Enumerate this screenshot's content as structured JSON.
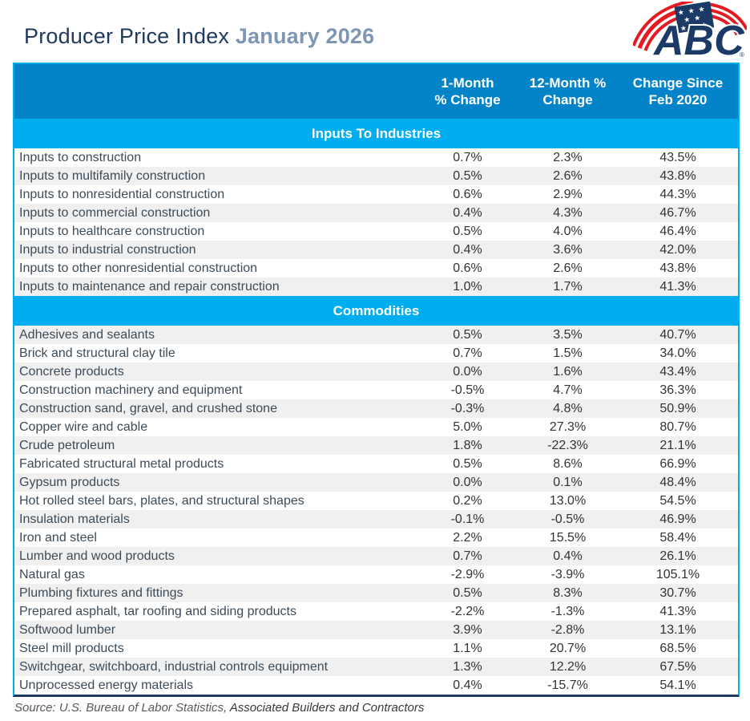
{
  "page": {
    "title_main": "Producer Price Index ",
    "title_period": "January 2026"
  },
  "logo": {
    "text": "ABC",
    "registered": "®",
    "navy": "#1b3a66",
    "red": "#e31b23"
  },
  "colors": {
    "header_blue": "#0484c8",
    "section_blue": "#00aeef",
    "title_navy": "#20395f",
    "title_period_blue": "#7e96b4",
    "row_shade": "#f0f0f0",
    "label_text": "#3d4b57"
  },
  "table": {
    "columns": [
      {
        "text": "1-Month\n% Change"
      },
      {
        "text": "12-Month %\nChange"
      },
      {
        "text": "Change Since\nFeb 2020"
      }
    ],
    "sections": [
      {
        "label": "Inputs To Industries",
        "zebra_first": "white",
        "rows": [
          [
            "Inputs to construction",
            "0.7%",
            "2.3%",
            "43.5%"
          ],
          [
            "Inputs to multifamily construction",
            "0.5%",
            "2.6%",
            "43.8%"
          ],
          [
            "Inputs to nonresidential construction",
            "0.6%",
            "2.9%",
            "44.3%"
          ],
          [
            "Inputs to commercial construction",
            "0.4%",
            "4.3%",
            "46.7%"
          ],
          [
            "Inputs to healthcare construction",
            "0.5%",
            "4.0%",
            "46.4%"
          ],
          [
            "Inputs to industrial construction",
            "0.4%",
            "3.6%",
            "42.0%"
          ],
          [
            "Inputs to other nonresidential construction",
            "0.6%",
            "2.6%",
            "43.8%"
          ],
          [
            "Inputs to maintenance and repair construction",
            "1.0%",
            "1.7%",
            "41.3%"
          ]
        ]
      },
      {
        "label": "Commodities",
        "zebra_first": "shade",
        "rows": [
          [
            "Adhesives and sealants",
            "0.5%",
            "3.5%",
            "40.7%"
          ],
          [
            "Brick and structural clay tile",
            "0.7%",
            "1.5%",
            "34.0%"
          ],
          [
            "Concrete products",
            "0.0%",
            "1.6%",
            "43.4%"
          ],
          [
            "Construction machinery and equipment",
            "-0.5%",
            "4.7%",
            "36.3%"
          ],
          [
            "Construction sand, gravel, and crushed stone",
            "-0.3%",
            "4.8%",
            "50.9%"
          ],
          [
            "Copper wire and cable",
            "5.0%",
            "27.3%",
            "80.7%"
          ],
          [
            "Crude petroleum",
            "1.8%",
            "-22.3%",
            "21.1%"
          ],
          [
            "Fabricated structural metal products",
            "0.5%",
            "8.6%",
            "66.9%"
          ],
          [
            "Gypsum products",
            "0.0%",
            "0.1%",
            "48.4%"
          ],
          [
            "Hot rolled steel bars, plates, and structural shapes",
            "0.2%",
            "13.0%",
            "54.5%"
          ],
          [
            "Insulation materials",
            "-0.1%",
            "-0.5%",
            "46.9%"
          ],
          [
            "Iron and steel",
            "2.2%",
            "15.5%",
            "58.4%"
          ],
          [
            "Lumber and wood products",
            "0.7%",
            "0.4%",
            "26.1%"
          ],
          [
            "Natural gas",
            "-2.9%",
            "-3.9%",
            "105.1%"
          ],
          [
            "Plumbing fixtures and fittings",
            "0.5%",
            "8.3%",
            "30.7%"
          ],
          [
            "Prepared asphalt, tar roofing and siding products",
            "-2.2%",
            "-1.3%",
            "41.3%"
          ],
          [
            "Softwood lumber",
            "3.9%",
            "-2.8%",
            "13.1%"
          ],
          [
            "Steel mill products",
            "1.1%",
            "20.7%",
            "68.5%"
          ],
          [
            "Switchgear, switchboard, industrial controls equipment",
            "1.3%",
            "12.2%",
            "67.5%"
          ],
          [
            "Unprocessed energy materials",
            "0.4%",
            "-15.7%",
            "54.1%"
          ]
        ]
      }
    ]
  },
  "footer": {
    "source_prefix": "Source: U.S. Bureau of Labor Statistics, ",
    "source_org": "Associated Builders and Contractors"
  }
}
